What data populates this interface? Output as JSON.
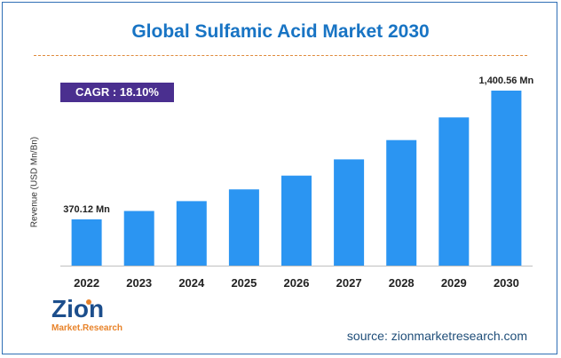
{
  "chart_data": {
    "type": "bar",
    "title": "Global Sulfamic Acid Market 2030",
    "ylabel": "Revenue (USD Mn/Bn)",
    "categories": [
      "2022",
      "2023",
      "2024",
      "2025",
      "2026",
      "2027",
      "2028",
      "2029",
      "2030"
    ],
    "values": [
      370.12,
      437.11,
      516.23,
      609.66,
      720.01,
      850.34,
      1004.25,
      1186.02,
      1400.56
    ],
    "value_labels": [
      "370.12 Mn",
      "",
      "",
      "",
      "",
      "",
      "",
      "",
      "1,400.56 Mn"
    ],
    "ylim": [
      0,
      1500
    ],
    "grid": false,
    "bar_color": "#2b95f2",
    "annotation": "CAGR : 18.10%"
  },
  "brand": {
    "logo_text": "Zion",
    "logo_subtext": "Market.Research",
    "logo_color": "#1c4e8c",
    "logo_accent": "#e8832a",
    "source": "source: zionmarketresearch.com"
  }
}
